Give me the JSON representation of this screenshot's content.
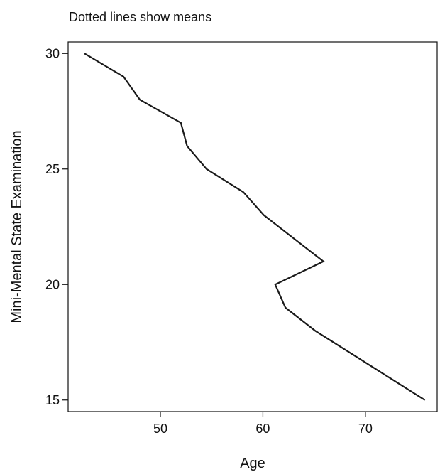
{
  "chart_data": {
    "type": "line",
    "subtitle": "Dotted lines show means",
    "xlabel": "Age",
    "ylabel": "Mini-Mental State Examination",
    "xlim": [
      41,
      77
    ],
    "ylim": [
      14.5,
      30.5
    ],
    "xticks": [
      50,
      60,
      70
    ],
    "yticks": [
      15,
      20,
      25,
      30
    ],
    "grid": false,
    "series": [
      {
        "x": [
          42.6,
          46.4,
          48.0,
          52.0,
          52.6,
          54.5,
          58.1,
          60.1,
          65.9,
          61.2,
          62.2,
          65.1,
          75.8
        ],
        "y": [
          30,
          29,
          28,
          27,
          26,
          25,
          24,
          23,
          21,
          20,
          19,
          18,
          15
        ]
      }
    ],
    "line_color": "#1a1a1a"
  }
}
